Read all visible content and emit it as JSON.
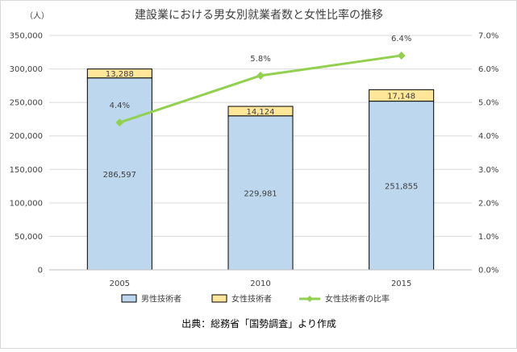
{
  "chart_data": {
    "type": "bar",
    "title": "建設業における男女別就業者数と女性比率の推移",
    "y_unit_label": "（人）",
    "categories": [
      "2005",
      "2010",
      "2015"
    ],
    "ylim": [
      0,
      350000
    ],
    "y_ticks": [
      "0",
      "50,000",
      "100,000",
      "150,000",
      "200,000",
      "250,000",
      "300,000",
      "350,000"
    ],
    "y2lim": [
      0,
      7.0
    ],
    "y2_ticks": [
      "0.0%",
      "1.0%",
      "2.0%",
      "3.0%",
      "4.0%",
      "5.0%",
      "6.0%",
      "7.0%"
    ],
    "stacked": true,
    "series": [
      {
        "name": "男性技術者",
        "kind": "bar",
        "color": "#bdd7ee",
        "values": [
          286597,
          229981,
          251855
        ],
        "labels": [
          "286,597",
          "229,981",
          "251,855"
        ]
      },
      {
        "name": "女性技術者",
        "kind": "bar",
        "color": "#ffe699",
        "values": [
          13288,
          14124,
          17148
        ],
        "labels": [
          "13,288",
          "14,124",
          "17,148"
        ]
      },
      {
        "name": "女性技術者の比率",
        "kind": "line",
        "axis": "right",
        "color": "#92d050",
        "values": [
          4.4,
          5.8,
          6.4
        ],
        "labels": [
          "4.4%",
          "5.8%",
          "6.4%"
        ]
      }
    ],
    "grid": true,
    "legend_position": "bottom"
  },
  "source_note": "出典：総務省「国勢調査」より作成"
}
